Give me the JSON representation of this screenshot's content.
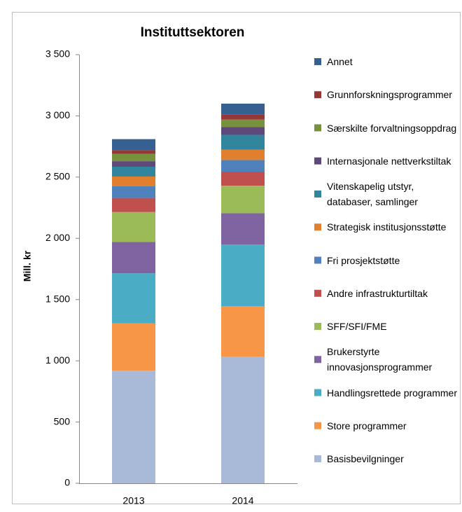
{
  "chart_data": {
    "type": "stacked_bar",
    "title": "Instituttsektoren",
    "y_label": "Mill. kr",
    "categories": [
      "2013",
      "2014"
    ],
    "series": [
      {
        "name": "Basisbevilgninger",
        "color": "#a9b9d8",
        "values": [
          920,
          1035
        ]
      },
      {
        "name": "Store programmer",
        "color": "#f79646",
        "values": [
          385,
          410
        ]
      },
      {
        "name": "Handlingsrettede programmer",
        "color": "#4bacc6",
        "values": [
          410,
          505
        ]
      },
      {
        "name": "Brukerstyrte innovasjonsprogrammer",
        "color": "#8064a2",
        "values": [
          255,
          255
        ]
      },
      {
        "name": "SFF/SFI/FME",
        "color": "#9bbb59",
        "values": [
          245,
          225
        ]
      },
      {
        "name": "Andre infrastrukturtiltak",
        "color": "#c0504d",
        "values": [
          115,
          115
        ]
      },
      {
        "name": "Fri prosjektstøtte",
        "color": "#4f81bd",
        "values": [
          95,
          95
        ]
      },
      {
        "name": "Strategisk institusjonsstøtte",
        "color": "#e0802f",
        "values": [
          80,
          85
        ]
      },
      {
        "name": "Vitenskapelig utstyr, databaser, samlinger",
        "color": "#31859c",
        "values": [
          80,
          120
        ]
      },
      {
        "name": "Internasjonale nettverkstiltak",
        "color": "#5f497a",
        "values": [
          45,
          65
        ]
      },
      {
        "name": "Særskilte forvaltningsoppdrag",
        "color": "#76923c",
        "values": [
          60,
          60
        ]
      },
      {
        "name": "Grunnforskningsprogrammer",
        "color": "#953735",
        "values": [
          30,
          40
        ]
      },
      {
        "name": "Annet",
        "color": "#376092",
        "values": [
          90,
          90
        ]
      }
    ],
    "ylim": [
      0,
      3500
    ],
    "yticks": [
      0,
      500,
      {
        "value": 1000,
        "label": "1 000"
      },
      {
        "value": 1500,
        "label": "1 500"
      },
      {
        "value": 2000,
        "label": "2 000"
      },
      {
        "value": 2500,
        "label": "2 500"
      },
      {
        "value": 3000,
        "label": "3 000"
      },
      {
        "value": 3500,
        "label": "3 500"
      }
    ],
    "legend": "right"
  }
}
